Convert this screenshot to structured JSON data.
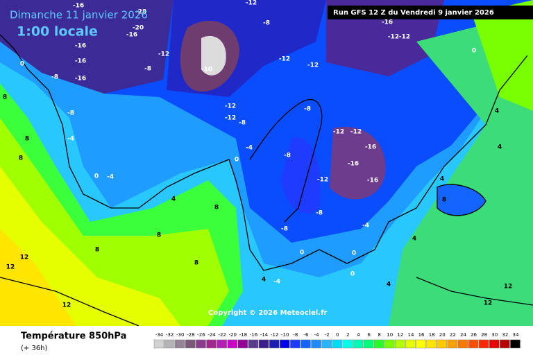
{
  "header": {
    "valid_date": "Dimanche 11 janvier 2026",
    "local_time": "1:00 locale",
    "run_info": "Run GFS 12 Z du Vendredi 9 janvier 2026"
  },
  "footer": {
    "copyright": "Copyright © 2026 Meteociel.fr",
    "field": "Température 850hPa",
    "lead_time": "(+ 36h)"
  },
  "scale": {
    "ticks": [
      "-34",
      "-32",
      "-30",
      "-28",
      "-26",
      "-24",
      "-22",
      "-20",
      "-18",
      "-16",
      "-14",
      "-12",
      "-10",
      "-8",
      "-6",
      "-4",
      "-2",
      "0",
      "2",
      "4",
      "6",
      "8",
      "10",
      "12",
      "14",
      "16",
      "18",
      "20",
      "22",
      "24",
      "26",
      "28",
      "30",
      "32",
      "34"
    ],
    "colors": [
      "#d2d2d2",
      "#b4b4b4",
      "#968296",
      "#785a78",
      "#8c3c8c",
      "#a0288c",
      "#b41eb4",
      "#c800c8",
      "#960096",
      "#5a3c8c",
      "#3c1e8c",
      "#1e1eb4",
      "#0000e6",
      "#1e3cff",
      "#1464ff",
      "#1e8cff",
      "#28b4ff",
      "#00dcff",
      "#00ffe6",
      "#00ffb4",
      "#00ff78",
      "#28ff28",
      "#78ff00",
      "#b4ff00",
      "#e6ff00",
      "#ffff00",
      "#ffe600",
      "#ffc800",
      "#ffa000",
      "#ff7800",
      "#ff5000",
      "#ff2800",
      "#e60000",
      "#b40000",
      "#000000"
    ]
  },
  "map_labels": [
    "-16",
    "-28",
    "-12",
    "-20",
    "-16",
    "-8",
    "-16",
    "-16",
    "-16",
    "-12",
    "-8",
    "-12",
    "-12",
    "-12",
    "-12",
    "-16",
    "0",
    "-10",
    "-12",
    "-12",
    "-8",
    "-8",
    "-12",
    "-12",
    "-16",
    "-16",
    "-12",
    "-16",
    "-8",
    "-4",
    "0",
    "-4",
    "0",
    "-8",
    "-4",
    "-8",
    "0",
    "8",
    "8",
    "8",
    "4",
    "8",
    "8",
    "4",
    "4",
    "4",
    "8",
    "-4",
    "-8",
    "-8",
    "0",
    "0",
    "-4",
    "0",
    "4",
    "4",
    "12",
    "12",
    "12",
    "12",
    "12",
    "8",
    "8",
    "4"
  ]
}
